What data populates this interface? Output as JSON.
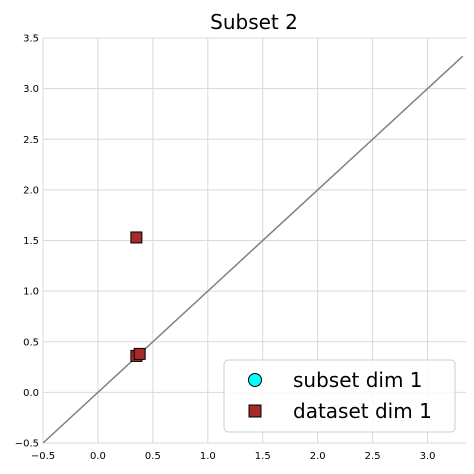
{
  "chart_data": {
    "type": "scatter",
    "title": "Subset 2",
    "xlabel": "",
    "ylabel": "",
    "xlim": [
      -0.5,
      3.35
    ],
    "ylim": [
      -0.5,
      3.5
    ],
    "x_ticks": [
      -0.5,
      0.0,
      0.5,
      1.0,
      1.5,
      2.0,
      2.5,
      3.0
    ],
    "x_tick_labels": [
      "−0.5",
      "0.0",
      "0.5",
      "1.0",
      "1.5",
      "2.0",
      "2.5",
      "3.0"
    ],
    "y_ticks": [
      -0.5,
      0.0,
      0.5,
      1.0,
      1.5,
      2.0,
      2.5,
      3.0,
      3.5
    ],
    "y_tick_labels": [
      "−0.5",
      "0.0",
      "0.5",
      "1.0",
      "1.5",
      "2.0",
      "2.5",
      "3.0",
      "3.5"
    ],
    "grid": true,
    "legend_position": "bottom-right",
    "reference_line": {
      "x": [
        -0.5,
        3.32
      ],
      "y": [
        -0.5,
        3.32
      ],
      "color": "#808080"
    },
    "series": [
      {
        "name": "subset dim 1",
        "marker": "circle",
        "color": "#00ffff",
        "points": []
      },
      {
        "name": "dataset dim 1",
        "marker": "square",
        "color": "#a52a2a",
        "points": [
          [
            0.35,
            1.53
          ],
          [
            0.35,
            0.36
          ],
          [
            0.38,
            0.38
          ]
        ]
      }
    ]
  }
}
